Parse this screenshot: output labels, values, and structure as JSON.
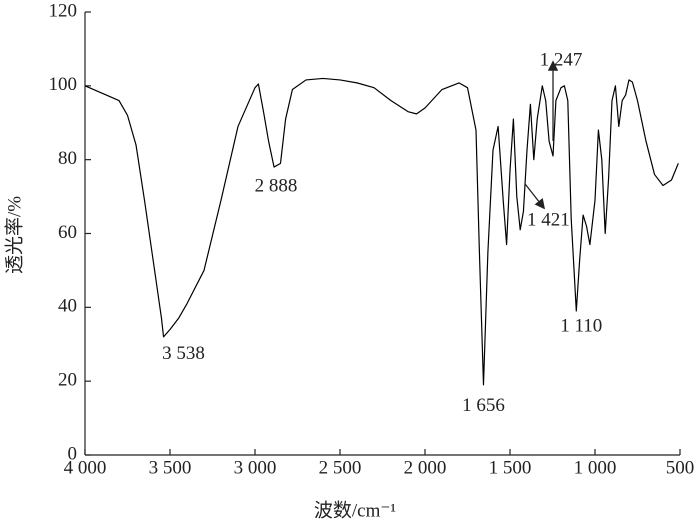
{
  "chart_data": {
    "type": "line",
    "xlabel": "波数/cm⁻¹",
    "ylabel": "透光率/%",
    "x": [
      4000,
      3900,
      3800,
      3750,
      3700,
      3650,
      3600,
      3550,
      3538,
      3500,
      3450,
      3400,
      3300,
      3200,
      3100,
      3000,
      2980,
      2950,
      2920,
      2888,
      2850,
      2820,
      2780,
      2700,
      2600,
      2500,
      2400,
      2300,
      2200,
      2100,
      2050,
      2000,
      1900,
      1800,
      1750,
      1700,
      1680,
      1656,
      1630,
      1600,
      1570,
      1540,
      1520,
      1500,
      1480,
      1460,
      1440,
      1421,
      1400,
      1380,
      1360,
      1340,
      1310,
      1290,
      1270,
      1247,
      1230,
      1200,
      1180,
      1160,
      1140,
      1110,
      1090,
      1070,
      1050,
      1030,
      1000,
      980,
      960,
      940,
      920,
      900,
      880,
      860,
      840,
      820,
      800,
      780,
      750,
      700,
      650,
      600,
      550,
      510
    ],
    "values": [
      100,
      98,
      96,
      92,
      84,
      69,
      53,
      37,
      32,
      34,
      37,
      41,
      50,
      69,
      89,
      99.5,
      100.5,
      93,
      85,
      78,
      79,
      91,
      99,
      101.6,
      102,
      101.6,
      100.8,
      99.5,
      96,
      93,
      92.4,
      94,
      99,
      100.8,
      99.5,
      88,
      55,
      19,
      55,
      82.6,
      89,
      69,
      57,
      77,
      91,
      70,
      61,
      66,
      82.6,
      95,
      80,
      91,
      100,
      96,
      85,
      81,
      96,
      99.5,
      100,
      96,
      64,
      39,
      53,
      65,
      62,
      57,
      69,
      88,
      80,
      60,
      75,
      96,
      100,
      89,
      96,
      97.5,
      101.6,
      101,
      96,
      85,
      76,
      73,
      74.5,
      79
    ],
    "color": "#000000",
    "xlim": [
      4000,
      500
    ],
    "ylim": [
      0,
      120
    ],
    "xticks": [
      {
        "value": 4000,
        "label": "4 000"
      },
      {
        "value": 3500,
        "label": "3 500"
      },
      {
        "value": 3000,
        "label": "3 000"
      },
      {
        "value": 2500,
        "label": "2 500"
      },
      {
        "value": 2000,
        "label": "2 000"
      },
      {
        "value": 1500,
        "label": "1 500"
      },
      {
        "value": 1000,
        "label": "1 000"
      },
      {
        "value": 500,
        "label": "500"
      }
    ],
    "yticks": [
      0,
      20,
      40,
      60,
      80,
      100,
      120
    ],
    "grid": false,
    "annotations": [
      {
        "value": 3538,
        "label": "3 538"
      },
      {
        "value": 2888,
        "label": "2 888"
      },
      {
        "value": 1656,
        "label": "1 656"
      },
      {
        "value": 1421,
        "label": "1 421"
      },
      {
        "value": 1110,
        "label": "1 110"
      },
      {
        "value": 1247,
        "label": "1 247"
      }
    ]
  }
}
